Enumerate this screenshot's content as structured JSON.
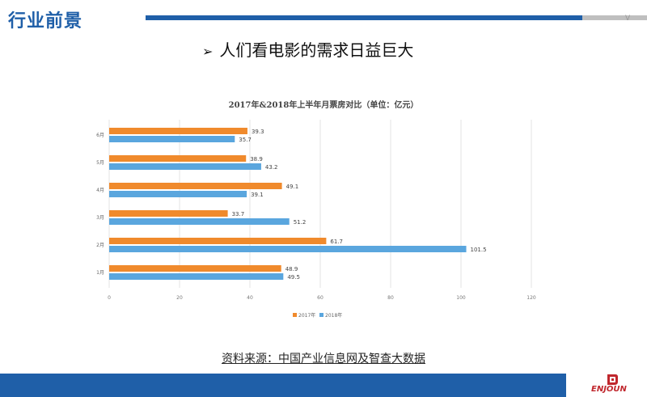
{
  "header": {
    "title": "行业前景",
    "mark": "V"
  },
  "headline": {
    "bullet": "➢",
    "text": "人们看电影的需求日益巨大"
  },
  "source": "资料来源：中国产业信息网及智查大数据",
  "logo": {
    "text": "ENJOUN"
  },
  "colors": {
    "brand": "#1f5fa8",
    "series2017": "#f08a2c",
    "series2018": "#5aa6de",
    "logo": "#c0272d"
  },
  "chart_data": {
    "type": "bar",
    "orientation": "horizontal",
    "title": "2017年&2018年上半年月票房对比（单位：亿元）",
    "categories": [
      "6月",
      "5月",
      "4月",
      "3月",
      "2月",
      "1月"
    ],
    "series": [
      {
        "name": "2017年",
        "values": [
          39.3,
          38.9,
          49.1,
          33.7,
          61.7,
          48.9
        ]
      },
      {
        "name": "2018年",
        "values": [
          35.7,
          43.2,
          39.1,
          51.2,
          101.5,
          49.5
        ]
      }
    ],
    "xlim": [
      0,
      120
    ],
    "xticks": [
      0,
      20,
      40,
      60,
      80,
      100,
      120
    ],
    "grid": true,
    "legend": "bottom-center"
  }
}
